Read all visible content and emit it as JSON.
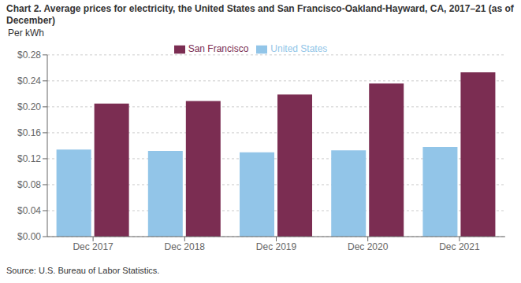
{
  "chart_data": {
    "type": "bar",
    "title": "Chart 2. Average prices for electricity, the United States and San Francisco-Oakland-Hayward, CA, 2017–21 (as of December)",
    "ylabel": "Per kWh",
    "annotations": [
      "Source: U.S. Bureau of Labor Statistics."
    ],
    "categories": [
      "Dec 2017",
      "Dec 2018",
      "Dec 2019",
      "Dec 2020",
      "Dec 2021"
    ],
    "series": [
      {
        "name": "United States",
        "color": "#92C5E8",
        "values": [
          0.134,
          0.132,
          0.13,
          0.133,
          0.138
        ]
      },
      {
        "name": "San Francisco",
        "color": "#7B2D52",
        "values": [
          0.205,
          0.209,
          0.219,
          0.236,
          0.253
        ]
      }
    ],
    "ylim": [
      0,
      0.28
    ],
    "yticks": [
      {
        "value": 0.0,
        "label": "$0.00"
      },
      {
        "value": 0.04,
        "label": "$0.04"
      },
      {
        "value": 0.08,
        "label": "$0.08"
      },
      {
        "value": 0.12,
        "label": "$0.12"
      },
      {
        "value": 0.16,
        "label": "$0.16"
      },
      {
        "value": 0.2,
        "label": "$0.20"
      },
      {
        "value": 0.24,
        "label": "$0.24"
      },
      {
        "value": 0.28,
        "label": "$0.28"
      }
    ],
    "grid": true,
    "legend": "top"
  }
}
